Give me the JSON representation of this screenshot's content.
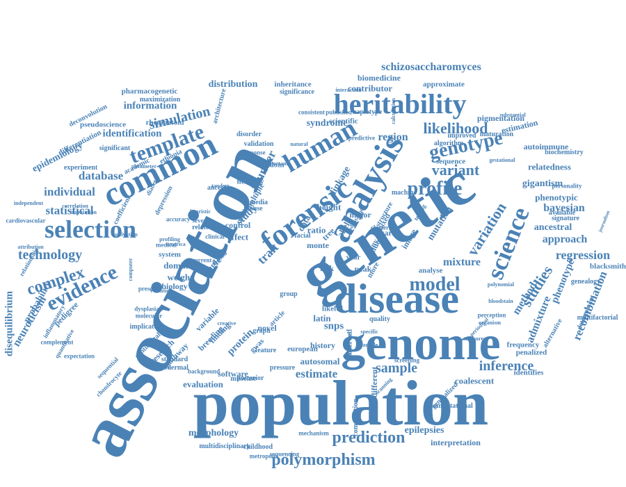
{
  "cloud": {
    "color": "#4a82b6",
    "words": [
      "association",
      "genetic",
      "population",
      "genome",
      "disease",
      "forensic",
      "analysis",
      "common",
      "heritability",
      "selection",
      "human",
      "genotype",
      "profile",
      "template",
      "evidence",
      "complex",
      "technology",
      "prediction",
      "polymorphism",
      "model",
      "science",
      "studies",
      "variation",
      "variant",
      "likelihood",
      "inference",
      "sample",
      "estimate",
      "regression",
      "recombination",
      "simulation",
      "identification",
      "information",
      "database",
      "individual",
      "statistical",
      "region",
      "bayesian",
      "approach",
      "admixture",
      "method",
      "mixture",
      "phenotype",
      "schizosaccharomyces",
      "biomedicine",
      "contributor",
      "approximate",
      "distribution",
      "pharmacogenetic",
      "relatedness",
      "gigantism",
      "ancestral",
      "founder",
      "study",
      "trait",
      "linkage",
      "single",
      "dominant",
      "weight",
      "software",
      "evaluation",
      "morphology",
      "epilepsies",
      "interpretation",
      "autosomal",
      "coalescent",
      "frequency",
      "penalized",
      "identifies",
      "snps",
      "latin",
      "likeltd",
      "protein",
      "breeding",
      "pathway",
      "research",
      "pedigree",
      "neuroticism",
      "probability",
      "disequilibrium",
      "epidemiology",
      "syndrome",
      "mutation",
      "phenotypic",
      "pseudoscience",
      "academic",
      "diabetes",
      "multiple",
      "heredity",
      "freedom",
      "validation",
      "disorder",
      "effect",
      "control",
      "ratio",
      "data",
      "allele",
      "native",
      "system",
      "biology",
      "novel",
      "risk",
      "peak",
      "history",
      "european",
      "different",
      "childhood",
      "metropolis",
      "multidisciplinary",
      "observed",
      "sequence",
      "algorithm",
      "pigmentation",
      "autoimmune",
      "estimation",
      "improved",
      "maturation",
      "scientific",
      "haplotype",
      "inheritance",
      "significance",
      "maximization",
      "deconvolution",
      "architecture",
      "rheumatoid",
      "differentiation",
      "significant",
      "experiment",
      "ethiopia",
      "response",
      "ancestor",
      "depression",
      "height",
      "major",
      "mixed",
      "structure",
      "machine",
      "testing",
      "available",
      "signature",
      "personality",
      "biochemistry",
      "blacksmith",
      "genealogy",
      "determinant",
      "alternative",
      "multifactorial",
      "screening",
      "computational",
      "sequencing",
      "mechanism",
      "generalized",
      "scanning",
      "computation",
      "observed",
      "pressure",
      "background",
      "posterior",
      "standard",
      "ectodermal",
      "continental",
      "sequential",
      "chondrocyte",
      "expectation",
      "quantitative",
      "complement",
      "inflammatory",
      "relationship",
      "attribution",
      "cardiovascular",
      "independent",
      "correlation",
      "imputation",
      "coefficient",
      "implicated",
      "molecular",
      "dysplasia",
      "present",
      "variable",
      "finding",
      "missense",
      "gwas",
      "tree",
      "monte",
      "carlo",
      "image",
      "value",
      "more",
      "many",
      "year",
      "analyse",
      "quality",
      "graph",
      "feature",
      "article",
      "group",
      "cluster",
      "mouse",
      "media",
      "facial",
      "based",
      "current",
      "related",
      "several",
      "clinical",
      "medical",
      "accuracy",
      "heuristic",
      "profiling",
      "america",
      "predictive",
      "consistent",
      "published",
      "interaction",
      "calculation",
      "gestational",
      "journalism",
      "substantial",
      "important",
      "particle",
      "specific",
      "tandem",
      "activation",
      "evolution",
      "computer",
      "creative",
      "periodical",
      "treasure",
      "bloodstain",
      "organism",
      "perception",
      "polynomial",
      "natural",
      "parameter",
      "adaptation"
    ]
  }
}
